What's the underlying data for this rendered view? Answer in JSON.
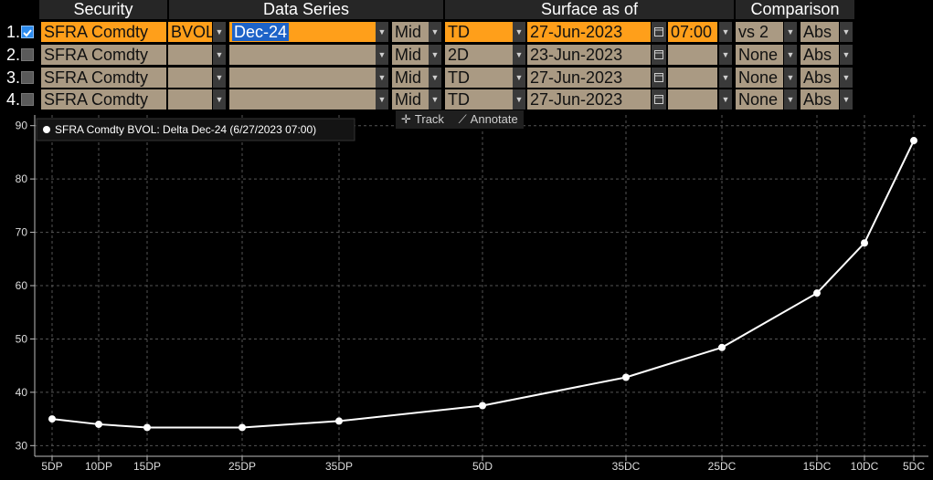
{
  "headers": {
    "security": "Security",
    "data_series": "Data Series",
    "surface_as_of": "Surface as of",
    "comparison": "Comparison"
  },
  "rows": [
    {
      "num": "1.",
      "checked": true,
      "security": "SFRA Comdty",
      "field": "BVOL",
      "series": "Dec-24",
      "side": "Mid",
      "rel": "TD",
      "date": "27-Jun-2023",
      "time": "07:00",
      "vs": "vs 2",
      "mode": "Abs"
    },
    {
      "num": "2.",
      "checked": false,
      "security": "SFRA Comdty",
      "field": "",
      "series": "",
      "side": "Mid",
      "rel": "2D",
      "date": "23-Jun-2023",
      "time": "",
      "vs": "None",
      "mode": "Abs"
    },
    {
      "num": "3.",
      "checked": false,
      "security": "SFRA Comdty",
      "field": "",
      "series": "",
      "side": "Mid",
      "rel": "TD",
      "date": "27-Jun-2023",
      "time": "",
      "vs": "None",
      "mode": "Abs"
    },
    {
      "num": "4.",
      "checked": false,
      "security": "SFRA Comdty",
      "field": "",
      "series": "",
      "side": "Mid",
      "rel": "TD",
      "date": "27-Jun-2023",
      "time": "",
      "vs": "None",
      "mode": "Abs"
    }
  ],
  "toolbar": {
    "track": "Track",
    "annotate": "Annotate"
  },
  "colors": {
    "orange": "#ff9f1a",
    "tan": "#aa9a83",
    "line": "#ffffff",
    "grid": "#555555"
  },
  "chart_data": {
    "type": "line",
    "legend": "SFRA Comdty BVOL: Delta Dec-24 (6/27/2023 07:00)",
    "legend_position": "top-left",
    "x": [
      "5DP",
      "10DP",
      "15DP",
      "25DP",
      "35DP",
      "50D",
      "35DC",
      "25DC",
      "15DC",
      "10DC",
      "5DC"
    ],
    "y": [
      35.0,
      34.0,
      33.4,
      33.4,
      34.6,
      37.5,
      42.8,
      48.4,
      58.6,
      68.0,
      87.2
    ],
    "ylim": [
      28,
      92
    ],
    "yticks": [
      30,
      40,
      50,
      60,
      70,
      80,
      90
    ],
    "grid": true
  }
}
